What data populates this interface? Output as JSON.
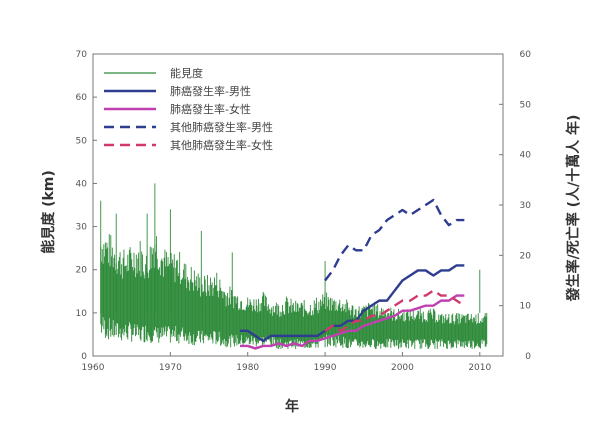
{
  "chart_data": {
    "type": "line",
    "xlabel": "年",
    "ylabel": "能見度 (km)",
    "y2label": "發生率/死亡率 (人/十萬人 年)",
    "xlim": [
      1960,
      2013
    ],
    "ylim": [
      0,
      70
    ],
    "y2lim": [
      0,
      60
    ],
    "xticks": [
      1960,
      1970,
      1980,
      1990,
      2000,
      2010
    ],
    "yticks": [
      0,
      10,
      20,
      30,
      40,
      50,
      60,
      70
    ],
    "y2ticks": [
      0,
      10,
      20,
      30,
      40,
      50,
      60
    ],
    "legend_position": "top-left",
    "grid": false,
    "series": [
      {
        "name": "能見度",
        "axis": "left",
        "color": "#2e8b3a",
        "style": "solid-thin",
        "x": [
          1961,
          1962,
          1963,
          1964,
          1965,
          1966,
          1967,
          1968,
          1969,
          1970,
          1971,
          1972,
          1973,
          1974,
          1975,
          1976,
          1977,
          1978,
          1979,
          1980,
          1981,
          1982,
          1983,
          1984,
          1985,
          1986,
          1987,
          1988,
          1989,
          1990,
          1991,
          1992,
          1993,
          1994,
          1995,
          1996,
          1997,
          1998,
          1999,
          2000,
          2001,
          2002,
          2003,
          2004,
          2005,
          2006,
          2007,
          2008,
          2009,
          2010,
          2011
        ],
        "values": [
          30,
          29,
          27,
          25,
          26,
          28,
          24,
          32,
          26,
          24,
          25,
          22,
          21,
          19,
          19,
          20,
          17,
          16,
          15,
          14,
          14,
          15,
          13,
          13,
          14,
          13,
          13,
          13,
          14,
          15,
          14,
          14,
          13,
          12,
          12,
          13,
          12,
          12,
          11,
          11,
          11,
          11,
          11,
          11,
          10,
          10,
          10,
          10,
          10,
          10,
          10
        ],
        "low": [
          10,
          9,
          8,
          8,
          8,
          7,
          8,
          7,
          7,
          7,
          7,
          7,
          6,
          6,
          6,
          6,
          5,
          5,
          5,
          5,
          5,
          5,
          5,
          4,
          4,
          4,
          4,
          4,
          4,
          5,
          5,
          5,
          4,
          4,
          4,
          4,
          4,
          4,
          4,
          4,
          4,
          4,
          4,
          4,
          4,
          4,
          4,
          4,
          4,
          4,
          4
        ],
        "spikes": [
          [
            1961,
            36
          ],
          [
            1963,
            33
          ],
          [
            1967,
            33
          ],
          [
            1968,
            40
          ],
          [
            1970,
            34
          ],
          [
            1974,
            29
          ],
          [
            1978,
            24
          ],
          [
            1990,
            22
          ],
          [
            2010,
            20
          ]
        ]
      },
      {
        "name": "肺癌發生率-男性",
        "axis": "right",
        "color": "#2e3d8f",
        "style": "solid",
        "x": [
          1979,
          1980,
          1981,
          1982,
          1983,
          1984,
          1985,
          1986,
          1987,
          1988,
          1989,
          1990,
          1991,
          1992,
          1993,
          1994,
          1995,
          1996,
          1997,
          1998,
          1999,
          2000,
          2001,
          2002,
          2003,
          2004,
          2005,
          2006,
          2007,
          2008
        ],
        "values": [
          5,
          5,
          4,
          3,
          4,
          4,
          4,
          4,
          4,
          4,
          4,
          5,
          6,
          6,
          7,
          7,
          9,
          10,
          11,
          11,
          13,
          15,
          16,
          17,
          17,
          16,
          17,
          17,
          18,
          18
        ]
      },
      {
        "name": "肺癌發生率-女性",
        "axis": "right",
        "color": "#c040b0",
        "style": "solid",
        "x": [
          1979,
          1980,
          1981,
          1982,
          1983,
          1984,
          1985,
          1986,
          1987,
          1988,
          1989,
          1990,
          1991,
          1992,
          1993,
          1994,
          1995,
          1996,
          1997,
          1998,
          1999,
          2000,
          2001,
          2002,
          2003,
          2004,
          2005,
          2006,
          2007,
          2008
        ],
        "values": [
          2,
          2,
          1.5,
          2,
          2,
          2.5,
          2,
          2.5,
          2,
          3,
          3,
          3.5,
          4,
          4.5,
          5,
          5,
          6,
          6.5,
          7,
          7.5,
          8,
          9,
          9,
          9.5,
          10,
          10,
          11,
          11,
          12,
          12
        ]
      },
      {
        "name": "其他肺癌發生率-男性",
        "axis": "right",
        "color": "#2e3d8f",
        "style": "dashed",
        "x": [
          1990,
          1991,
          1992,
          1993,
          1994,
          1995,
          1996,
          1997,
          1998,
          1999,
          2000,
          2001,
          2002,
          2003,
          2004,
          2005,
          2006,
          2007,
          2008
        ],
        "values": [
          15,
          17,
          20,
          22,
          21,
          21,
          24,
          25,
          27,
          28,
          29,
          28,
          29,
          30,
          31,
          28,
          26,
          27,
          27
        ]
      },
      {
        "name": "其他肺癌發生率-女性",
        "axis": "right",
        "color": "#d03a6a",
        "style": "dashed",
        "x": [
          1990,
          1991,
          1992,
          1993,
          1994,
          1995,
          1996,
          1997,
          1998,
          1999,
          2000,
          2001,
          2002,
          2003,
          2004,
          2005,
          2006,
          2007,
          2008
        ],
        "values": [
          5,
          6,
          5,
          6,
          7,
          7,
          8,
          8,
          9,
          10,
          11,
          11,
          12,
          12,
          13,
          12,
          12,
          11,
          10
        ]
      }
    ]
  }
}
